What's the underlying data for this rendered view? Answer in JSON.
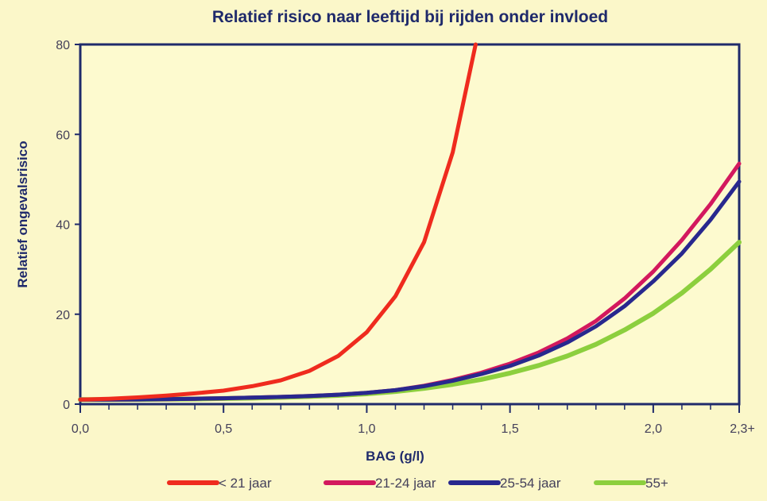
{
  "chart_data": {
    "type": "line",
    "title": "Relatief risico naar leeftijd bij rijden onder invloed",
    "xlabel": "BAG (g/l)",
    "ylabel": "Relatief ongevalsrisico",
    "xlim": [
      0,
      2.3
    ],
    "ylim": [
      0,
      80
    ],
    "x_ticks": [
      {
        "value": 0.0,
        "label": "0,0"
      },
      {
        "value": 0.5,
        "label": "0,5"
      },
      {
        "value": 1.0,
        "label": "1,0"
      },
      {
        "value": 1.5,
        "label": "1,5"
      },
      {
        "value": 2.0,
        "label": "2,0"
      },
      {
        "value": 2.3,
        "label": "2,3+"
      }
    ],
    "y_ticks": [
      {
        "value": 0,
        "label": "0"
      },
      {
        "value": 20,
        "label": "20"
      },
      {
        "value": 40,
        "label": "40"
      },
      {
        "value": 60,
        "label": "60"
      },
      {
        "value": 80,
        "label": "80"
      }
    ],
    "grid": false,
    "legend_position": "bottom",
    "series": [
      {
        "name": "< 21 jaar",
        "color": "#ef2b1e",
        "x": [
          0.0,
          0.1,
          0.2,
          0.3,
          0.4,
          0.5,
          0.6,
          0.7,
          0.8,
          0.9,
          1.0,
          1.1,
          1.2,
          1.3,
          1.38
        ],
        "y": [
          1.0,
          1.2,
          1.5,
          1.9,
          2.4,
          3.0,
          4.0,
          5.3,
          7.4,
          10.7,
          16.0,
          24.0,
          36.0,
          56.0,
          80.0
        ]
      },
      {
        "name": "21-24 jaar",
        "color": "#d3195e",
        "x": [
          0.0,
          0.1,
          0.2,
          0.3,
          0.4,
          0.5,
          0.6,
          0.7,
          0.8,
          0.9,
          1.0,
          1.1,
          1.2,
          1.3,
          1.4,
          1.5,
          1.6,
          1.7,
          1.8,
          1.9,
          2.0,
          2.1,
          2.2,
          2.3
        ],
        "y": [
          1.0,
          1.0,
          1.05,
          1.1,
          1.2,
          1.3,
          1.45,
          1.6,
          1.8,
          2.1,
          2.5,
          3.1,
          4.1,
          5.4,
          7.0,
          9.0,
          11.5,
          14.6,
          18.5,
          23.5,
          29.5,
          36.5,
          44.5,
          53.5
        ]
      },
      {
        "name": "25-54 jaar",
        "color": "#28288e",
        "x": [
          0.0,
          0.1,
          0.2,
          0.3,
          0.4,
          0.5,
          0.6,
          0.7,
          0.8,
          0.9,
          1.0,
          1.1,
          1.2,
          1.3,
          1.4,
          1.5,
          1.6,
          1.7,
          1.8,
          1.9,
          2.0,
          2.1,
          2.2,
          2.3
        ],
        "y": [
          1.0,
          1.0,
          1.05,
          1.1,
          1.2,
          1.3,
          1.45,
          1.6,
          1.8,
          2.1,
          2.5,
          3.1,
          4.0,
          5.2,
          6.7,
          8.5,
          10.8,
          13.7,
          17.3,
          21.8,
          27.3,
          33.5,
          41.0,
          49.5
        ]
      },
      {
        "name": "55+",
        "color": "#8ccf3e",
        "x": [
          0.0,
          0.1,
          0.2,
          0.3,
          0.4,
          0.5,
          0.6,
          0.7,
          0.8,
          0.9,
          1.0,
          1.1,
          1.2,
          1.3,
          1.4,
          1.5,
          1.6,
          1.7,
          1.8,
          1.9,
          2.0,
          2.1,
          2.2,
          2.3
        ],
        "y": [
          1.0,
          1.0,
          1.05,
          1.1,
          1.15,
          1.25,
          1.35,
          1.5,
          1.7,
          1.95,
          2.3,
          2.8,
          3.5,
          4.4,
          5.5,
          6.9,
          8.6,
          10.7,
          13.3,
          16.5,
          20.2,
          24.7,
          30.0,
          36.0
        ]
      }
    ]
  }
}
